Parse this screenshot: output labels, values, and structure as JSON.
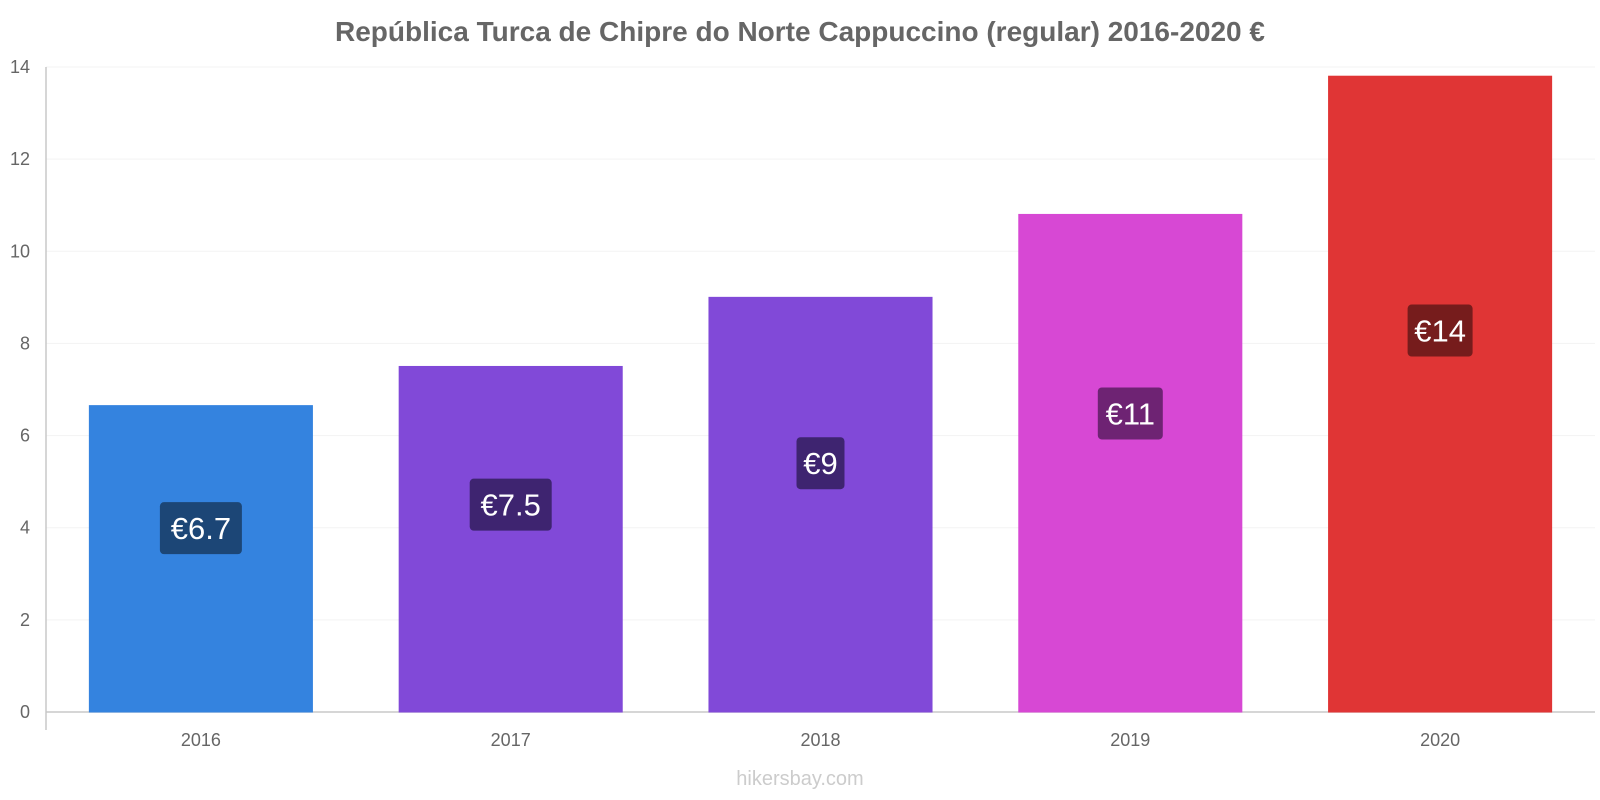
{
  "chart_data": {
    "type": "bar",
    "title": "República Turca de Chipre do Norte Cappuccino (regular) 2016-2020 €",
    "categories": [
      "2016",
      "2017",
      "2018",
      "2019",
      "2020"
    ],
    "values": [
      6.65,
      7.5,
      9.0,
      10.8,
      13.8
    ],
    "data_labels": [
      "€6.7",
      "€7.5",
      "€9",
      "€11",
      "€14"
    ],
    "bar_colors": [
      "#3483df",
      "#8149d8",
      "#8149d8",
      "#d748d4",
      "#e03535"
    ],
    "label_bg_colors": [
      "#1c4676",
      "#3e2470",
      "#3e2470",
      "#6e2373",
      "#761c1c"
    ],
    "ylim": [
      0,
      14
    ],
    "yticks": [
      0,
      2,
      4,
      6,
      8,
      10,
      12,
      14
    ],
    "xlabel": "",
    "ylabel": "",
    "grid": true,
    "legend": "none"
  },
  "watermark": "hikersbay.com"
}
